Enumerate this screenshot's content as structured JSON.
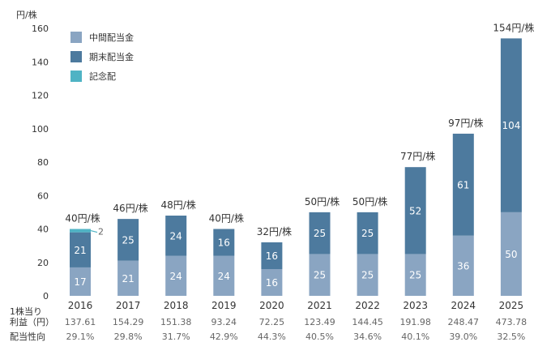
{
  "chart_data": {
    "type": "bar",
    "stacked": true,
    "ylabel": "円/株",
    "ylim": [
      0,
      160
    ],
    "yticks": [
      0,
      20,
      40,
      60,
      80,
      100,
      120,
      140,
      160
    ],
    "categories": [
      "2016",
      "2017",
      "2018",
      "2019",
      "2020",
      "2021",
      "2022",
      "2023",
      "2024",
      "2025"
    ],
    "series": [
      {
        "name": "中間配当金",
        "color": "#8aa5c2",
        "values": [
          17,
          21,
          24,
          24,
          16,
          25,
          25,
          25,
          36,
          50
        ]
      },
      {
        "name": "期末配当金",
        "color": "#4d7a9e",
        "values": [
          21,
          25,
          24,
          16,
          16,
          25,
          25,
          52,
          61,
          104
        ]
      },
      {
        "name": "記念配",
        "color": "#4fb3c4",
        "values": [
          2,
          0,
          0,
          0,
          0,
          0,
          0,
          0,
          0,
          0
        ]
      }
    ],
    "totals": [
      "40円/株",
      "46円/株",
      "48円/株",
      "40円/株",
      "32円/株",
      "50円/株",
      "50円/株",
      "77円/株",
      "97円/株",
      "154円/株"
    ],
    "commemorative_label": "2",
    "stats": [
      {
        "label_lines": [
          "1株当り",
          "利益（円）"
        ],
        "values": [
          "137.61",
          "154.29",
          "151.38",
          "93.24",
          "72.25",
          "123.49",
          "144.45",
          "191.98",
          "248.47",
          "473.78"
        ]
      },
      {
        "label_lines": [
          "配当性向"
        ],
        "values": [
          "29.1%",
          "29.8%",
          "31.7%",
          "42.9%",
          "44.3%",
          "40.5%",
          "34.6%",
          "40.1%",
          "39.0%",
          "32.5%"
        ]
      }
    ],
    "legend_position": "top-left",
    "grid": false
  }
}
